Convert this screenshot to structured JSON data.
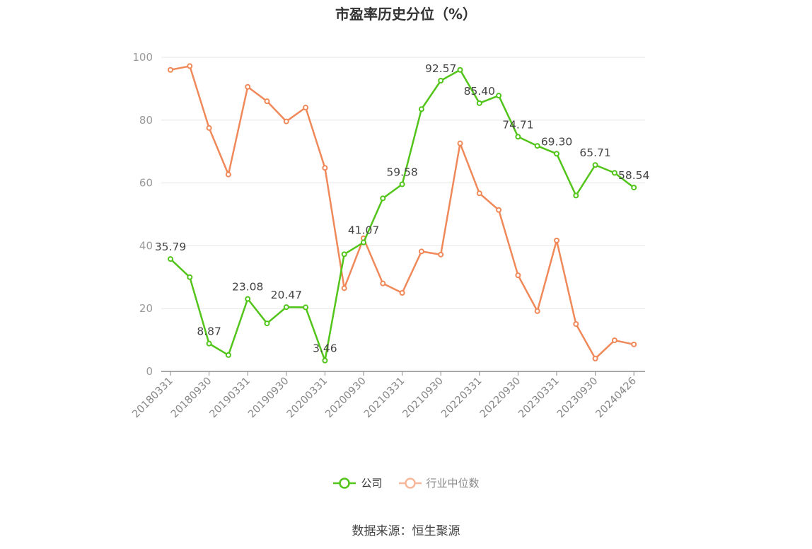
{
  "chart_data": {
    "type": "line",
    "title": "市盈率历史分位（%）",
    "ylim": [
      0,
      100
    ],
    "y_ticks": [
      0,
      20,
      40,
      60,
      80,
      100
    ],
    "x": [
      "20180331",
      "20180630",
      "20180930",
      "20181231",
      "20190331",
      "20190630",
      "20190930",
      "20191231",
      "20200331",
      "20200630",
      "20200930",
      "20201231",
      "20210331",
      "20210630",
      "20210930",
      "20211231",
      "20220331",
      "20220630",
      "20220930",
      "20221231",
      "20230331",
      "20230630",
      "20230930",
      "20231231",
      "20240426"
    ],
    "x_tick_labels": [
      "20180331",
      "20180930",
      "20190331",
      "20190930",
      "20200331",
      "20200930",
      "20210331",
      "20210930",
      "20220331",
      "20220930",
      "20230331",
      "20230930",
      "20240426"
    ],
    "grid": true,
    "legend_position": "bottom",
    "series": [
      {
        "name": "公司",
        "color": "#52c41a",
        "values": [
          35.79,
          30.0,
          8.87,
          5.2,
          23.08,
          15.3,
          20.47,
          20.4,
          3.46,
          37.3,
          41.07,
          55.1,
          59.58,
          83.5,
          92.57,
          96.0,
          85.4,
          87.8,
          74.71,
          71.8,
          69.3,
          56.0,
          65.71,
          63.2,
          58.54
        ],
        "labeled_points": [
          {
            "index": 0,
            "text": "35.79"
          },
          {
            "index": 2,
            "text": "8.87"
          },
          {
            "index": 4,
            "text": "23.08"
          },
          {
            "index": 6,
            "text": "20.47"
          },
          {
            "index": 8,
            "text": "3.46"
          },
          {
            "index": 10,
            "text": "41.07"
          },
          {
            "index": 12,
            "text": "59.58"
          },
          {
            "index": 14,
            "text": "92.57"
          },
          {
            "index": 16,
            "text": "85.40"
          },
          {
            "index": 18,
            "text": "74.71"
          },
          {
            "index": 20,
            "text": "69.30"
          },
          {
            "index": 22,
            "text": "65.71"
          },
          {
            "index": 24,
            "text": "58.54"
          }
        ]
      },
      {
        "name": "行业中位数",
        "color": "#f0895a",
        "values": [
          96.0,
          97.2,
          77.5,
          62.7,
          90.6,
          86.0,
          79.6,
          84.0,
          64.8,
          26.5,
          42.4,
          28.0,
          25.0,
          38.2,
          37.2,
          72.6,
          56.7,
          51.4,
          30.6,
          19.2,
          41.7,
          15.1,
          4.1,
          9.9,
          8.6
        ]
      }
    ]
  },
  "legend": {
    "company_label": "公司",
    "industry_label": "行业中位数"
  },
  "footer": {
    "source_text": "数据来源：恒生聚源"
  }
}
